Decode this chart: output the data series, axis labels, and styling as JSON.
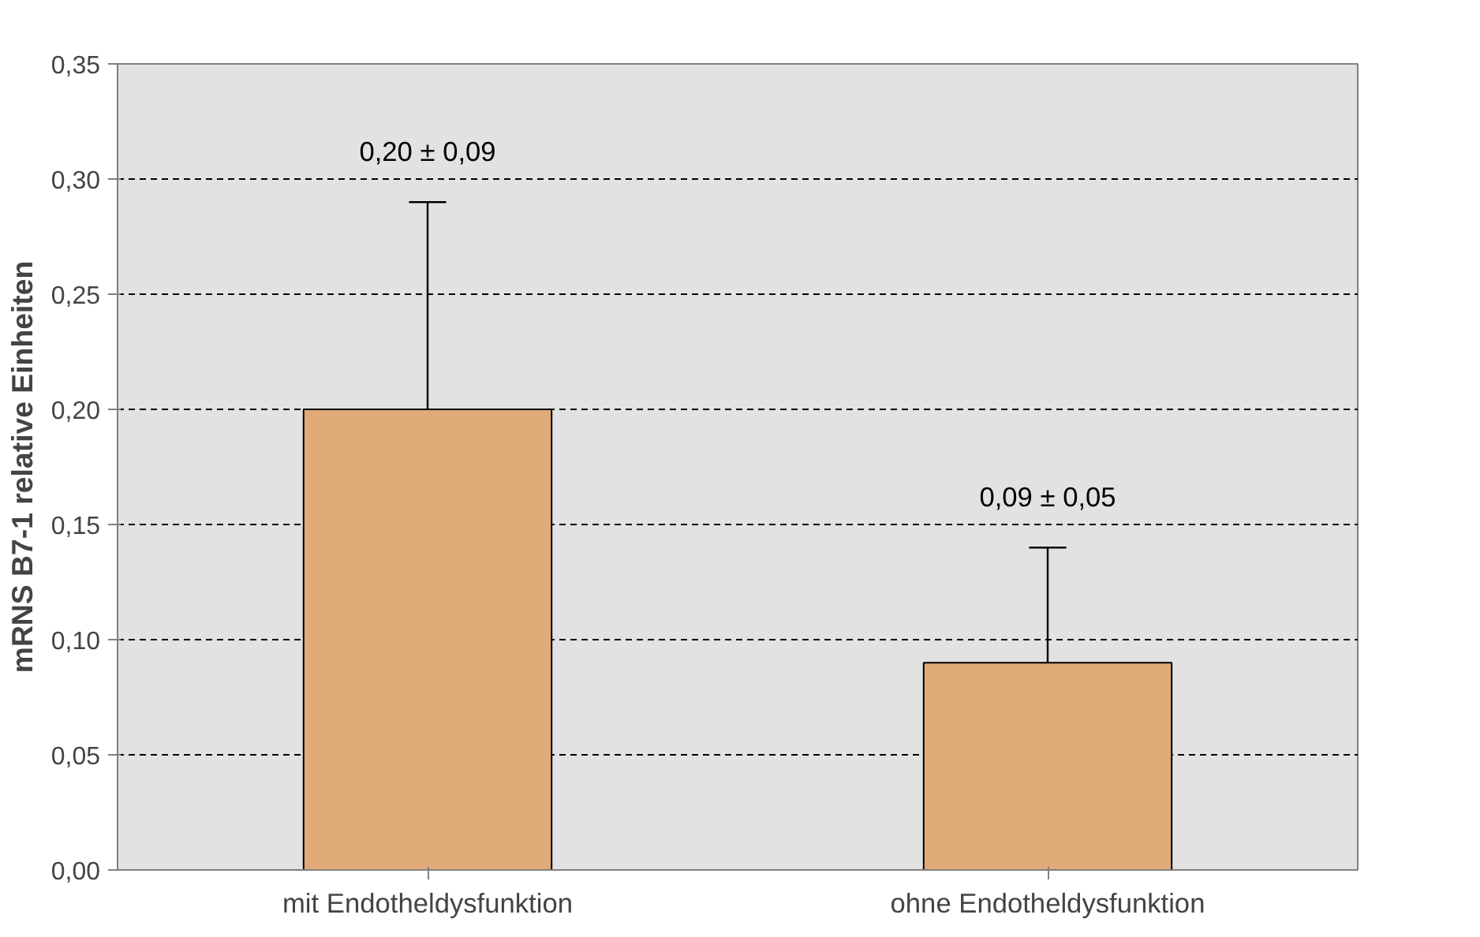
{
  "chart_data": {
    "type": "bar",
    "ylabel": "mRNS B7-1 relative Einheiten",
    "categories": [
      "mit Endotheldysfunktion",
      "ohne Endotheldysfunktion"
    ],
    "values": [
      0.2,
      0.09
    ],
    "color": "#e0ab78",
    "errors": [
      [
        0.2,
        0.29
      ],
      [
        0.09,
        0.14
      ]
    ],
    "annotations": [
      {
        "text": "0,20 ± 0,09",
        "x": "mit Endotheldysfunktion",
        "y": 0.29
      },
      {
        "text": "0,09 ± 0,05",
        "x": "ohne Endotheldysfunktion",
        "y": 0.14
      }
    ],
    "ylim": [
      0,
      0.35
    ],
    "yticks": [
      {
        "value": 0,
        "label": "0,00"
      },
      {
        "value": 0.05,
        "label": "0,05"
      },
      {
        "value": 0.1,
        "label": "0,10"
      },
      {
        "value": 0.15,
        "label": "0,15"
      },
      {
        "value": 0.2,
        "label": "0,20"
      },
      {
        "value": 0.25,
        "label": "0,25"
      },
      {
        "value": 0.3,
        "label": "0,30"
      },
      {
        "value": 0.35,
        "label": "0,35"
      }
    ],
    "grid": "y"
  }
}
